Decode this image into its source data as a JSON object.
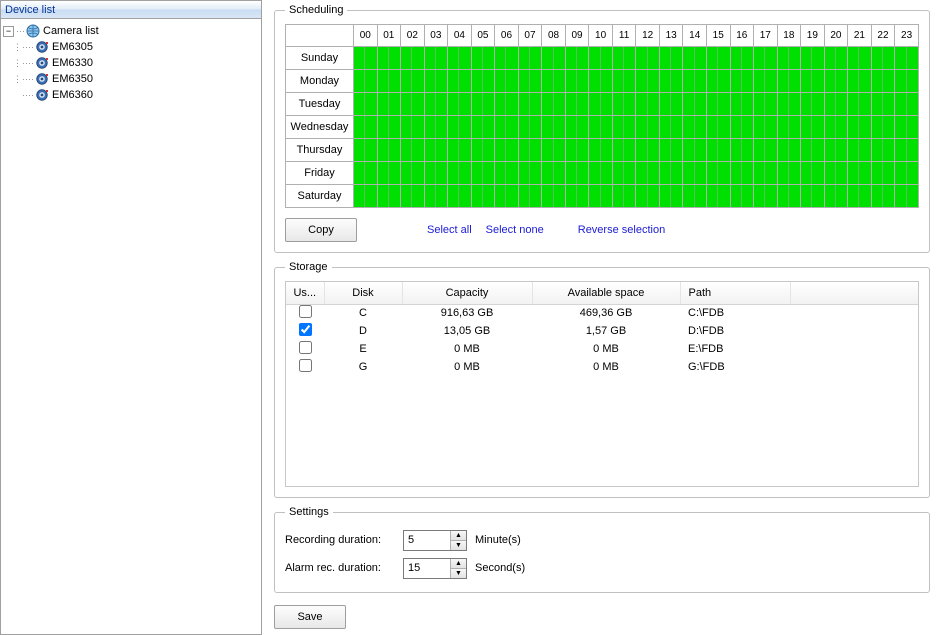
{
  "sidebar": {
    "header": "Device list",
    "root": {
      "label": "Camera list"
    },
    "items": [
      {
        "label": "EM6305"
      },
      {
        "label": "EM6330"
      },
      {
        "label": "EM6350"
      },
      {
        "label": "EM6360"
      }
    ]
  },
  "scheduling": {
    "legend": "Scheduling",
    "hours": [
      "00",
      "01",
      "02",
      "03",
      "04",
      "05",
      "06",
      "07",
      "08",
      "09",
      "10",
      "11",
      "12",
      "13",
      "14",
      "15",
      "16",
      "17",
      "18",
      "19",
      "20",
      "21",
      "22",
      "23"
    ],
    "days": [
      "Sunday",
      "Monday",
      "Tuesday",
      "Wednesday",
      "Thursday",
      "Friday",
      "Saturday"
    ],
    "cell_color": "#00e000",
    "grid_color": "#b0b0b0",
    "all_on": true,
    "copy_label": "Copy",
    "select_all_label": "Select all",
    "select_none_label": "Select none",
    "reverse_label": "Reverse selection"
  },
  "storage": {
    "legend": "Storage",
    "columns": {
      "use": "Us...",
      "disk": "Disk",
      "capacity": "Capacity",
      "avail": "Available space",
      "path": "Path"
    },
    "rows": [
      {
        "used": false,
        "disk": "C",
        "capacity": "916,63 GB",
        "avail": "469,36 GB",
        "path": "C:\\FDB"
      },
      {
        "used": true,
        "disk": "D",
        "capacity": "13,05 GB",
        "avail": "1,57 GB",
        "path": "D:\\FDB"
      },
      {
        "used": false,
        "disk": "E",
        "capacity": "0 MB",
        "avail": "0 MB",
        "path": "E:\\FDB"
      },
      {
        "used": false,
        "disk": "G",
        "capacity": "0 MB",
        "avail": "0 MB",
        "path": "G:\\FDB"
      }
    ]
  },
  "settings": {
    "legend": "Settings",
    "recording_label": "Recording duration:",
    "recording_value": "5",
    "recording_unit": "Minute(s)",
    "alarm_label": "Alarm rec. duration:",
    "alarm_value": "15",
    "alarm_unit": "Second(s)"
  },
  "save_label": "Save"
}
